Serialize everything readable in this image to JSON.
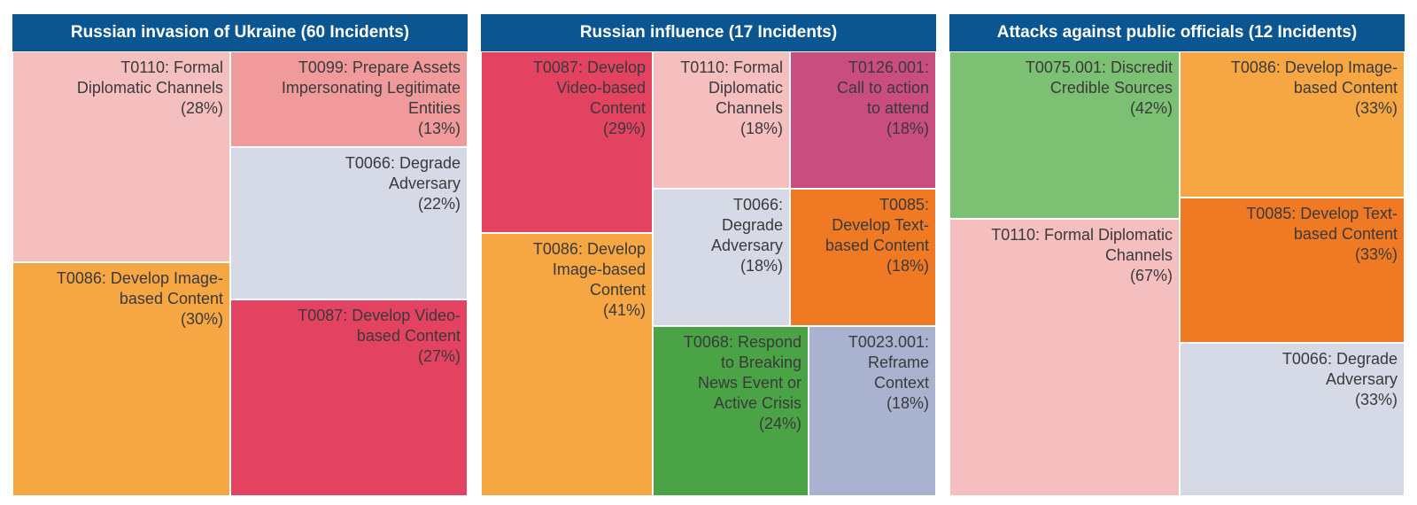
{
  "chart_data": [
    {
      "type": "treemap",
      "title": "Russian invasion of Ukraine (60 Incidents)",
      "items": [
        {
          "label": "T0110: Formal\nDiplomatic Channels\n(28%)",
          "name": "T0110: Formal Diplomatic Channels",
          "percent": 28,
          "color": "#f5bfc0"
        },
        {
          "label": "T0086: Develop Image-\nbased Content\n(30%)",
          "name": "T0086: Develop Image-based Content",
          "percent": 30,
          "color": "#f6a642"
        },
        {
          "label": "T0099: Prepare Assets\nImpersonating Legitimate\nEntities\n(13%)",
          "name": "T0099: Prepare Assets Impersonating Legitimate Entities",
          "percent": 13,
          "color": "#f09a9c"
        },
        {
          "label": "T0066: Degrade\nAdversary\n(22%)",
          "name": "T0066: Degrade Adversary",
          "percent": 22,
          "color": "#d6d9e6"
        },
        {
          "label": "T0087: Develop Video-\nbased Content\n(27%)",
          "name": "T0087: Develop Video-based Content",
          "percent": 27,
          "color": "#e34260"
        }
      ]
    },
    {
      "type": "treemap",
      "title": "Russian influence (17 Incidents)",
      "items": [
        {
          "label": "T0087: Develop\nVideo-based\nContent\n(29%)",
          "name": "T0087: Develop Video-based Content",
          "percent": 29,
          "color": "#e34260"
        },
        {
          "label": "T0086: Develop\nImage-based\nContent\n(41%)",
          "name": "T0086: Develop Image-based Content",
          "percent": 41,
          "color": "#f6a642"
        },
        {
          "label": "T0110: Formal\nDiplomatic\nChannels\n(18%)",
          "name": "T0110: Formal Diplomatic Channels",
          "percent": 18,
          "color": "#f5bfc0"
        },
        {
          "label": "T0126.001:\nCall to action\nto attend\n(18%)",
          "name": "T0126.001: Call to action to attend",
          "percent": 18,
          "color": "#c94d7e"
        },
        {
          "label": "T0066:\nDegrade\nAdversary\n(18%)",
          "name": "T0066: Degrade Adversary",
          "percent": 18,
          "color": "#d6d9e6"
        },
        {
          "label": "T0085:\nDevelop Text-\nbased Content\n(18%)",
          "name": "T0085: Develop Text-based Content",
          "percent": 18,
          "color": "#f07a23"
        },
        {
          "label": "T0068: Respond\nto Breaking\nNews Event or\nActive Crisis\n(24%)",
          "name": "T0068: Respond to Breaking News Event or Active Crisis",
          "percent": 24,
          "color": "#4aa445"
        },
        {
          "label": "T0023.001:\nReframe\nContext\n(18%)",
          "name": "T0023.001: Reframe Context",
          "percent": 18,
          "color": "#a9b3cf"
        }
      ]
    },
    {
      "type": "treemap",
      "title": "Attacks against public officials (12 Incidents)",
      "items": [
        {
          "label": "T0075.001: Discredit\nCredible Sources\n(42%)",
          "name": "T0075.001: Discredit Credible Sources",
          "percent": 42,
          "color": "#7cc073"
        },
        {
          "label": "T0110: Formal Diplomatic\nChannels\n(67%)",
          "name": "T0110: Formal Diplomatic Channels",
          "percent": 67,
          "color": "#f5bfc0"
        },
        {
          "label": "T0086: Develop Image-\nbased Content\n(33%)",
          "name": "T0086: Develop Image-based Content",
          "percent": 33,
          "color": "#f6a642"
        },
        {
          "label": "T0085: Develop Text-\nbased Content\n(33%)",
          "name": "T0085: Develop Text-based Content",
          "percent": 33,
          "color": "#f07a23"
        },
        {
          "label": "T0066: Degrade\nAdversary\n(33%)",
          "name": "T0066: Degrade Adversary",
          "percent": 33,
          "color": "#d6d9e6"
        }
      ]
    }
  ]
}
